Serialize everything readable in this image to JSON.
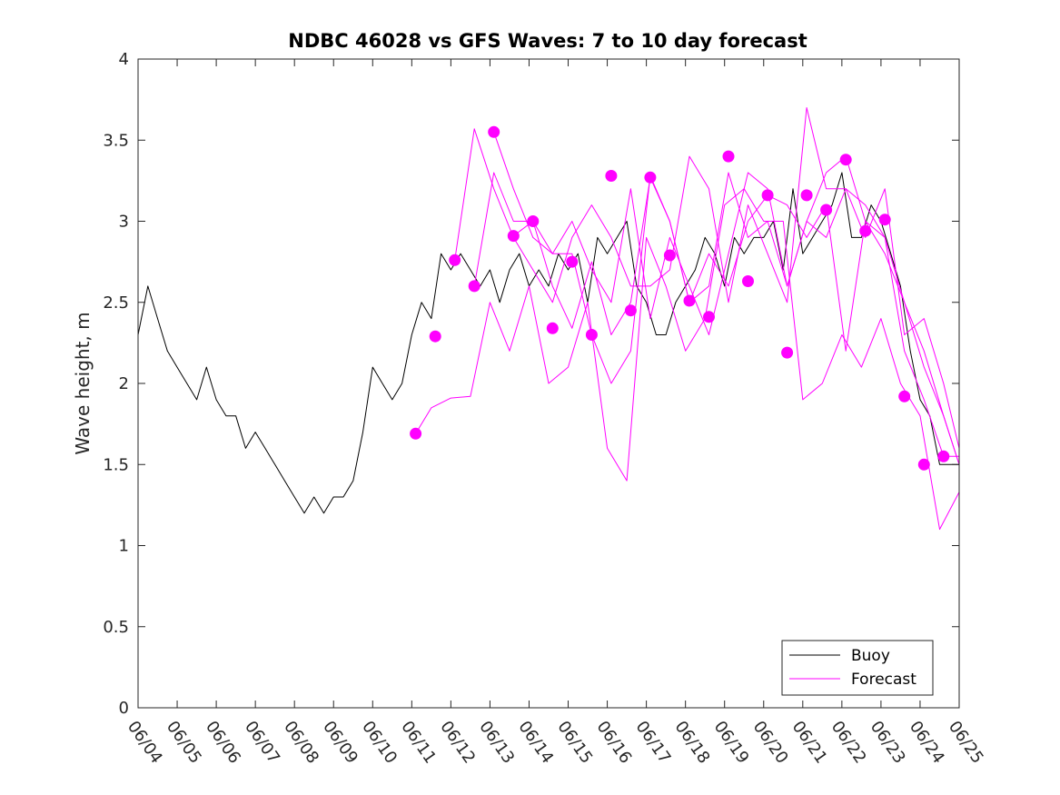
{
  "chart_data": {
    "type": "line",
    "title": "NDBC 46028 vs GFS Waves: 7 to 10 day forecast",
    "xlabel": "",
    "ylabel": "Wave height, m",
    "xlim": [
      "06/04",
      "06/25"
    ],
    "ylim": [
      0,
      4
    ],
    "x_ticks": [
      "06/04",
      "06/05",
      "06/06",
      "06/07",
      "06/08",
      "06/09",
      "06/10",
      "06/11",
      "06/12",
      "06/13",
      "06/14",
      "06/15",
      "06/16",
      "06/17",
      "06/18",
      "06/19",
      "06/20",
      "06/21",
      "06/22",
      "06/23",
      "06/24",
      "06/25"
    ],
    "y_ticks": [
      "0",
      "0.5",
      "1",
      "1.5",
      "2",
      "2.5",
      "3",
      "3.5",
      "4"
    ],
    "grid": false,
    "legend_position": "bottom-right",
    "colors": {
      "buoy": "#000000",
      "forecast": "#ff00ff"
    },
    "series": [
      {
        "name": "Buoy",
        "style": "line",
        "x_day": [
          0,
          0.25,
          0.5,
          0.75,
          1.0,
          1.25,
          1.5,
          1.75,
          2.0,
          2.25,
          2.5,
          2.75,
          3.0,
          3.25,
          3.5,
          3.75,
          4.0,
          4.25,
          4.5,
          4.75,
          5.0,
          5.25,
          5.5,
          5.75,
          6.0,
          6.25,
          6.5,
          6.75,
          7.0,
          7.25,
          7.5,
          7.75,
          8.0,
          8.25,
          8.5,
          8.75,
          9.0,
          9.25,
          9.5,
          9.75,
          10.0,
          10.25,
          10.5,
          10.75,
          11.0,
          11.25,
          11.5,
          11.75,
          12.0,
          12.25,
          12.5,
          12.75,
          13.0,
          13.25,
          13.5,
          13.75,
          14.0,
          14.25,
          14.5,
          14.75,
          15.0,
          15.25,
          15.5,
          15.75,
          16.0,
          16.25,
          16.5,
          16.75,
          17.0,
          17.25,
          17.5,
          17.75,
          18.0,
          18.25,
          18.5,
          18.75,
          19.0,
          19.25,
          19.5,
          19.75,
          20.0,
          20.25,
          20.5,
          20.75,
          21.0
        ],
        "values": [
          2.3,
          2.6,
          2.4,
          2.2,
          2.1,
          2.0,
          1.9,
          2.1,
          1.9,
          1.8,
          1.8,
          1.6,
          1.7,
          1.6,
          1.5,
          1.4,
          1.3,
          1.2,
          1.3,
          1.2,
          1.3,
          1.3,
          1.4,
          1.7,
          2.1,
          2.0,
          1.9,
          2.0,
          2.3,
          2.5,
          2.4,
          2.8,
          2.7,
          2.8,
          2.7,
          2.6,
          2.7,
          2.5,
          2.7,
          2.8,
          2.6,
          2.7,
          2.6,
          2.8,
          2.7,
          2.8,
          2.5,
          2.9,
          2.8,
          2.9,
          3.0,
          2.6,
          2.5,
          2.3,
          2.3,
          2.5,
          2.6,
          2.7,
          2.9,
          2.8,
          2.6,
          2.9,
          2.8,
          2.9,
          2.9,
          3.0,
          2.7,
          3.2,
          2.8,
          2.9,
          3.0,
          3.1,
          3.3,
          2.9,
          2.9,
          3.1,
          3.0,
          2.8,
          2.6,
          2.2,
          1.9,
          1.8,
          1.5,
          1.5,
          1.5
        ]
      },
      {
        "name": "Forecast",
        "style": "line",
        "x_day": [
          7.1,
          7.5,
          8.0,
          8.5,
          9.0,
          9.5,
          10.0,
          10.5,
          11.0,
          11.5,
          12.0,
          12.5,
          13.0,
          13.5,
          14.0,
          14.5,
          15.0,
          15.5,
          16.0,
          16.5,
          17.0,
          17.5,
          18.0,
          18.5,
          19.0,
          19.5,
          20.0,
          20.5,
          21.0
        ],
        "values": [
          1.69,
          1.85,
          1.91,
          1.92,
          2.5,
          2.2,
          2.6,
          2.0,
          2.1,
          2.5,
          1.6,
          1.4,
          2.9,
          2.6,
          2.2,
          2.4,
          3.1,
          3.2,
          3.0,
          3.0,
          1.9,
          2.0,
          2.3,
          2.1,
          2.4,
          2.0,
          1.8,
          1.1,
          1.33
        ]
      },
      {
        "name": "",
        "style": "line",
        "x_day": [
          8.1,
          8.6,
          9.1,
          9.6,
          10.1,
          10.6,
          11.1,
          11.6,
          12.1,
          12.6,
          13.1,
          13.6,
          14.1,
          14.6,
          15.1,
          15.6,
          16.1,
          16.6,
          17.1,
          17.6,
          18.1,
          18.6,
          19.1,
          19.6,
          20.1,
          20.6,
          21.0
        ],
        "values": [
          2.76,
          3.57,
          3.2,
          2.9,
          2.7,
          2.5,
          2.9,
          3.1,
          2.9,
          2.6,
          2.6,
          2.7,
          3.4,
          3.2,
          2.5,
          3.1,
          2.8,
          2.5,
          3.7,
          3.2,
          3.2,
          2.9,
          3.2,
          2.3,
          2.4,
          2.0,
          1.6
        ]
      },
      {
        "name": "",
        "style": "line",
        "x_day": [
          8.6,
          9.1,
          9.6,
          10.1,
          10.6,
          11.1,
          11.6,
          12.1,
          12.6,
          13.1,
          13.6,
          14.1,
          14.6,
          15.1,
          15.6,
          16.1,
          16.6,
          17.1,
          17.6,
          18.1,
          18.6,
          19.1,
          19.6,
          20.1,
          20.6,
          21.0
        ],
        "values": [
          2.6,
          3.3,
          3.0,
          3.0,
          2.8,
          3.0,
          2.7,
          2.5,
          3.2,
          2.4,
          2.9,
          2.6,
          2.3,
          2.8,
          3.3,
          3.2,
          2.6,
          3.0,
          2.9,
          3.2,
          3.1,
          2.9,
          2.5,
          2.1,
          1.8,
          1.5
        ]
      },
      {
        "name": "",
        "style": "line",
        "x_day": [
          9.1,
          9.6,
          10.1,
          10.6,
          11.1,
          11.6,
          12.1,
          12.6,
          13.1,
          13.6,
          14.1,
          14.6,
          15.1,
          15.6,
          16.1,
          16.6,
          17.1,
          17.6,
          18.1,
          18.6,
          19.1,
          19.6,
          20.1,
          20.6,
          21.0
        ],
        "values": [
          3.55,
          3.2,
          2.9,
          2.8,
          2.8,
          2.3,
          2.0,
          2.2,
          3.28,
          3.0,
          2.5,
          2.6,
          3.3,
          2.9,
          3.0,
          2.6,
          3.0,
          3.3,
          3.4,
          3.0,
          2.8,
          2.5,
          2.2,
          1.8,
          1.5
        ]
      },
      {
        "name": "",
        "style": "line",
        "x_day": [
          9.6,
          10.1,
          10.6,
          11.1,
          11.6,
          12.1,
          12.6,
          13.1,
          13.6,
          14.1,
          14.6,
          15.1,
          15.6,
          16.1,
          16.6,
          17.1,
          17.6,
          18.1,
          18.6,
          19.1,
          19.6,
          20.1,
          20.6,
          21.0
        ],
        "values": [
          2.91,
          3.0,
          2.6,
          2.34,
          2.75,
          2.3,
          2.5,
          3.27,
          3.0,
          2.5,
          2.8,
          2.6,
          3.0,
          3.16,
          3.1,
          2.9,
          3.1,
          2.2,
          3.0,
          2.9,
          2.2,
          1.9,
          1.55,
          1.55
        ]
      }
    ],
    "markers": {
      "name": "Forecast",
      "x_day": [
        7.1,
        7.6,
        8.1,
        8.6,
        9.1,
        9.6,
        10.1,
        10.6,
        11.1,
        11.6,
        12.1,
        12.6,
        13.1,
        13.6,
        14.1,
        14.6,
        15.1,
        15.6,
        16.1,
        16.6,
        17.1,
        17.6,
        18.1,
        18.6,
        19.1,
        19.6,
        20.1,
        20.6
      ],
      "values": [
        1.69,
        2.29,
        2.76,
        2.6,
        3.55,
        2.91,
        3.0,
        2.34,
        2.75,
        2.3,
        3.28,
        2.45,
        3.27,
        2.79,
        2.51,
        2.41,
        3.4,
        2.63,
        3.16,
        2.19,
        3.16,
        3.07,
        3.38,
        2.94,
        3.01,
        1.92,
        1.5,
        1.55
      ]
    },
    "legend": [
      "Buoy",
      "Forecast"
    ]
  }
}
